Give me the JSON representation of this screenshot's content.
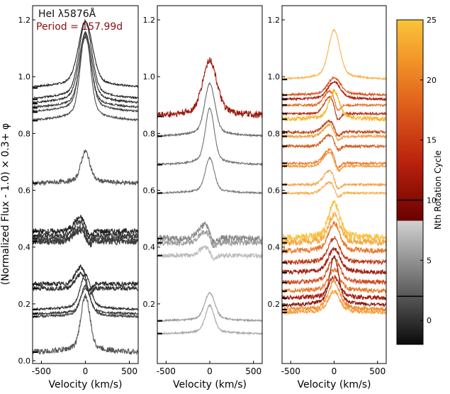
{
  "figure": {
    "title": "HeI λ5876Å",
    "period_label": "Period = 157.99d",
    "ylabel": "(Normalized Flux - 1.0) × 0.3+ φ",
    "xlabel": "Velocity (km/s)",
    "colorbar_label": "Nth Rotation Cycle"
  },
  "chart_data": [
    {
      "type": "line",
      "panel": "left",
      "xlabel": "Velocity (km/s)",
      "xlim": [
        -600,
        600
      ],
      "ylim": [
        -0.01,
        1.25
      ],
      "xticks": [
        -500,
        0,
        500
      ],
      "yticks": [
        0.0,
        0.2,
        0.4,
        0.6,
        0.8,
        1.0,
        1.2
      ],
      "series": [
        {
          "offset": 0.96,
          "amp": 0.19,
          "width": 110,
          "kind": "em",
          "noise": 0.003,
          "color": "#222222"
        },
        {
          "offset": 0.92,
          "amp": 0.22,
          "width": 100,
          "kind": "em",
          "noise": 0.003,
          "color": "#2a2a2a"
        },
        {
          "offset": 0.905,
          "amp": 0.2,
          "width": 100,
          "kind": "em",
          "noise": 0.003,
          "color": "#333333"
        },
        {
          "offset": 0.89,
          "amp": 0.2,
          "width": 90,
          "kind": "em",
          "noise": 0.003,
          "color": "#3a3a3a"
        },
        {
          "offset": 0.875,
          "amp": 0.22,
          "width": 90,
          "kind": "em",
          "noise": 0.003,
          "color": "#444444"
        },
        {
          "offset": 0.845,
          "amp": 0.25,
          "width": 80,
          "kind": "em",
          "noise": 0.003,
          "color": "#4a4a4a"
        },
        {
          "offset": 0.625,
          "amp": 0.09,
          "width": 70,
          "kind": "em",
          "noise": 0.008,
          "color": "#555555"
        },
        {
          "offset": 0.455,
          "amp": 0.05,
          "width": 110,
          "kind": "pcyg",
          "noise": 0.01,
          "color": "#222222"
        },
        {
          "offset": 0.44,
          "amp": 0.05,
          "width": 110,
          "kind": "pcyg",
          "noise": 0.01,
          "color": "#333333"
        },
        {
          "offset": 0.43,
          "amp": 0.04,
          "width": 100,
          "kind": "pcyg",
          "noise": 0.012,
          "color": "#444444"
        },
        {
          "offset": 0.42,
          "amp": 0.04,
          "width": 110,
          "kind": "pcyg",
          "noise": 0.012,
          "color": "#3a3a3a"
        },
        {
          "offset": 0.27,
          "amp": 0.06,
          "width": 90,
          "kind": "pcyg",
          "noise": 0.008,
          "color": "#2a2a2a"
        },
        {
          "offset": 0.255,
          "amp": 0.05,
          "width": 90,
          "kind": "pcyg",
          "noise": 0.008,
          "color": "#333333"
        },
        {
          "offset": 0.18,
          "amp": 0.1,
          "width": 80,
          "kind": "em",
          "noise": 0.004,
          "color": "#2a2a2a"
        },
        {
          "offset": 0.165,
          "amp": 0.08,
          "width": 70,
          "kind": "em",
          "noise": 0.004,
          "color": "#3a3a3a"
        },
        {
          "offset": 0.155,
          "amp": 0.08,
          "width": 80,
          "kind": "em",
          "noise": 0.004,
          "color": "#444444"
        },
        {
          "offset": 0.03,
          "amp": 0.16,
          "width": 70,
          "kind": "em",
          "noise": 0.01,
          "color": "#555555"
        }
      ]
    },
    {
      "type": "line",
      "panel": "middle",
      "xlabel": "Velocity (km/s)",
      "xlim": [
        -600,
        600
      ],
      "ylim": [
        -0.01,
        1.25
      ],
      "xticks": [
        -500,
        0,
        500
      ],
      "yticks": [
        0.2,
        0.4,
        0.6,
        0.8,
        1.0,
        1.2
      ],
      "series": [
        {
          "offset": 0.86,
          "amp": 0.16,
          "width": 110,
          "kind": "em",
          "noise": 0.012,
          "color": "#9b1a0e"
        },
        {
          "offset": 0.79,
          "amp": 0.15,
          "width": 80,
          "kind": "em",
          "noise": 0.003,
          "color": "#666666"
        },
        {
          "offset": 0.69,
          "amp": 0.16,
          "width": 70,
          "kind": "em",
          "noise": 0.003,
          "color": "#707070"
        },
        {
          "offset": 0.59,
          "amp": 0.1,
          "width": 70,
          "kind": "em",
          "noise": 0.003,
          "color": "#777777"
        },
        {
          "offset": 0.43,
          "amp": 0.05,
          "width": 100,
          "kind": "pcyg",
          "noise": 0.012,
          "color": "#888888"
        },
        {
          "offset": 0.415,
          "amp": 0.04,
          "width": 100,
          "kind": "pcyg",
          "noise": 0.01,
          "color": "#999999"
        },
        {
          "offset": 0.37,
          "amp": 0.03,
          "width": 100,
          "kind": "pcyg",
          "noise": 0.008,
          "color": "#bbbbbb"
        },
        {
          "offset": 0.14,
          "amp": 0.08,
          "width": 80,
          "kind": "em",
          "noise": 0.003,
          "color": "#999999"
        },
        {
          "offset": 0.095,
          "amp": 0.08,
          "width": 70,
          "kind": "em",
          "noise": 0.003,
          "color": "#a5a5a5"
        }
      ]
    },
    {
      "type": "line",
      "panel": "right",
      "xlabel": "Velocity (km/s)",
      "xlim": [
        -600,
        600
      ],
      "ylim": [
        -0.01,
        1.25
      ],
      "xticks": [
        -500,
        0,
        500
      ],
      "yticks": [
        0.2,
        0.4,
        0.6,
        0.8,
        1.0,
        1.2
      ],
      "series": [
        {
          "offset": 0.99,
          "amp": 0.14,
          "width": 90,
          "kind": "em",
          "noise": 0.003,
          "color": "#fbb040"
        },
        {
          "offset": 0.935,
          "amp": 0.05,
          "width": 100,
          "kind": "em",
          "noise": 0.004,
          "color": "#d8501a"
        },
        {
          "offset": 0.92,
          "amp": 0.05,
          "width": 100,
          "kind": "em",
          "noise": 0.004,
          "color": "#a81e10"
        },
        {
          "offset": 0.9,
          "amp": 0.05,
          "width": 90,
          "kind": "pcyg",
          "noise": 0.004,
          "color": "#e06a20"
        },
        {
          "offset": 0.87,
          "amp": 0.06,
          "width": 90,
          "kind": "pcyg",
          "noise": 0.004,
          "color": "#b83012"
        },
        {
          "offset": 0.85,
          "amp": 0.08,
          "width": 80,
          "kind": "em",
          "noise": 0.008,
          "color": "#f5b830"
        },
        {
          "offset": 0.805,
          "amp": 0.04,
          "width": 100,
          "kind": "pcyg",
          "noise": 0.005,
          "color": "#c44014"
        },
        {
          "offset": 0.79,
          "amp": 0.04,
          "width": 100,
          "kind": "pcyg",
          "noise": 0.005,
          "color": "#f0a040"
        },
        {
          "offset": 0.755,
          "amp": 0.04,
          "width": 100,
          "kind": "pcyg",
          "noise": 0.005,
          "color": "#d65a1c"
        },
        {
          "offset": 0.695,
          "amp": 0.05,
          "width": 100,
          "kind": "pcyg",
          "noise": 0.004,
          "color": "#e8782a"
        },
        {
          "offset": 0.685,
          "amp": 0.05,
          "width": 100,
          "kind": "pcyg",
          "noise": 0.004,
          "color": "#f29a38"
        },
        {
          "offset": 0.62,
          "amp": 0.05,
          "width": 100,
          "kind": "pcyg",
          "noise": 0.004,
          "color": "#f5a040"
        },
        {
          "offset": 0.59,
          "amp": 0.04,
          "width": 100,
          "kind": "pcyg",
          "noise": 0.004,
          "color": "#f8b050"
        },
        {
          "offset": 0.43,
          "amp": 0.1,
          "width": 90,
          "kind": "em",
          "noise": 0.014,
          "color": "#fbc040"
        },
        {
          "offset": 0.415,
          "amp": 0.08,
          "width": 90,
          "kind": "em",
          "noise": 0.012,
          "color": "#f5a838"
        },
        {
          "offset": 0.385,
          "amp": 0.08,
          "width": 90,
          "kind": "em",
          "noise": 0.01,
          "color": "#e8782a"
        },
        {
          "offset": 0.345,
          "amp": 0.07,
          "width": 90,
          "kind": "em",
          "noise": 0.008,
          "color": "#c03812"
        },
        {
          "offset": 0.31,
          "amp": 0.07,
          "width": 90,
          "kind": "em",
          "noise": 0.008,
          "color": "#a01e0e"
        },
        {
          "offset": 0.275,
          "amp": 0.07,
          "width": 90,
          "kind": "em",
          "noise": 0.008,
          "color": "#d04a18"
        },
        {
          "offset": 0.245,
          "amp": 0.06,
          "width": 90,
          "kind": "em",
          "noise": 0.008,
          "color": "#e8782a"
        },
        {
          "offset": 0.22,
          "amp": 0.06,
          "width": 90,
          "kind": "em",
          "noise": 0.008,
          "color": "#a81e10"
        },
        {
          "offset": 0.195,
          "amp": 0.14,
          "width": 70,
          "kind": "em",
          "noise": 0.006,
          "color": "#8b1a0e"
        },
        {
          "offset": 0.18,
          "amp": 0.08,
          "width": 90,
          "kind": "em",
          "noise": 0.008,
          "color": "#f08a30"
        },
        {
          "offset": 0.17,
          "amp": 0.06,
          "width": 90,
          "kind": "em",
          "noise": 0.008,
          "color": "#f5a040"
        }
      ]
    }
  ],
  "colorbar": {
    "range": [
      -2,
      25
    ],
    "ticks": [
      0,
      5,
      10,
      15,
      20,
      25
    ],
    "marks": [
      2,
      10
    ],
    "stops": [
      {
        "v": -2,
        "c": "#0a0a0a"
      },
      {
        "v": 8.3,
        "c": "#d2d2d2"
      },
      {
        "v": 8.3,
        "c": "#6b0000"
      },
      {
        "v": 13,
        "c": "#b8200c"
      },
      {
        "v": 18,
        "c": "#e0601c"
      },
      {
        "v": 22,
        "c": "#f39a2a"
      },
      {
        "v": 25,
        "c": "#fac43a"
      }
    ]
  }
}
